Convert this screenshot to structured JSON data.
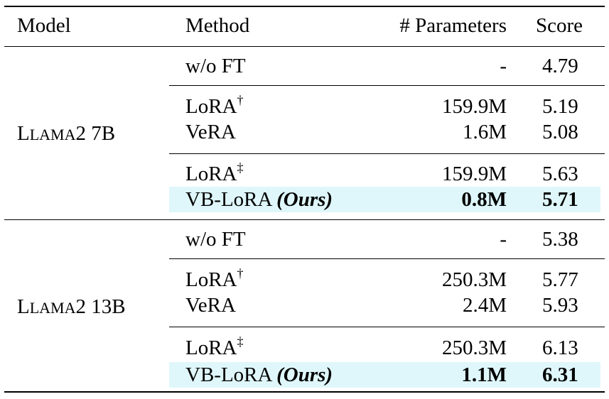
{
  "header": {
    "model": "Model",
    "method": "Method",
    "params": "# Parameters",
    "score": "Score"
  },
  "groups": [
    {
      "model": {
        "cap1": "L",
        "small": "LAMA",
        "rest": "2 7B"
      },
      "rows": [
        {
          "method": "w/o FT",
          "sup": "",
          "params": "-",
          "score": "4.79"
        },
        {
          "method": "LoRA",
          "sup": "†",
          "params": "159.9M",
          "score": "5.19"
        },
        {
          "method": "VeRA",
          "sup": "",
          "params": "1.6M",
          "score": "5.08"
        },
        {
          "method": "LoRA",
          "sup": "‡",
          "params": "159.9M",
          "score": "5.63"
        },
        {
          "method": "VB-LoRA ",
          "ours": "(Ours)",
          "params": "0.8M",
          "score": "5.71"
        }
      ]
    },
    {
      "model": {
        "cap1": "L",
        "small": "LAMA",
        "rest": "2 13B"
      },
      "rows": [
        {
          "method": "w/o FT",
          "sup": "",
          "params": "-",
          "score": "5.38"
        },
        {
          "method": "LoRA",
          "sup": "†",
          "params": "250.3M",
          "score": "5.77"
        },
        {
          "method": "VeRA",
          "sup": "",
          "params": "2.4M",
          "score": "5.93"
        },
        {
          "method": "LoRA",
          "sup": "‡",
          "params": "250.3M",
          "score": "6.13"
        },
        {
          "method": "VB-LoRA ",
          "ours": "(Ours)",
          "params": "1.1M",
          "score": "6.31"
        }
      ]
    }
  ]
}
